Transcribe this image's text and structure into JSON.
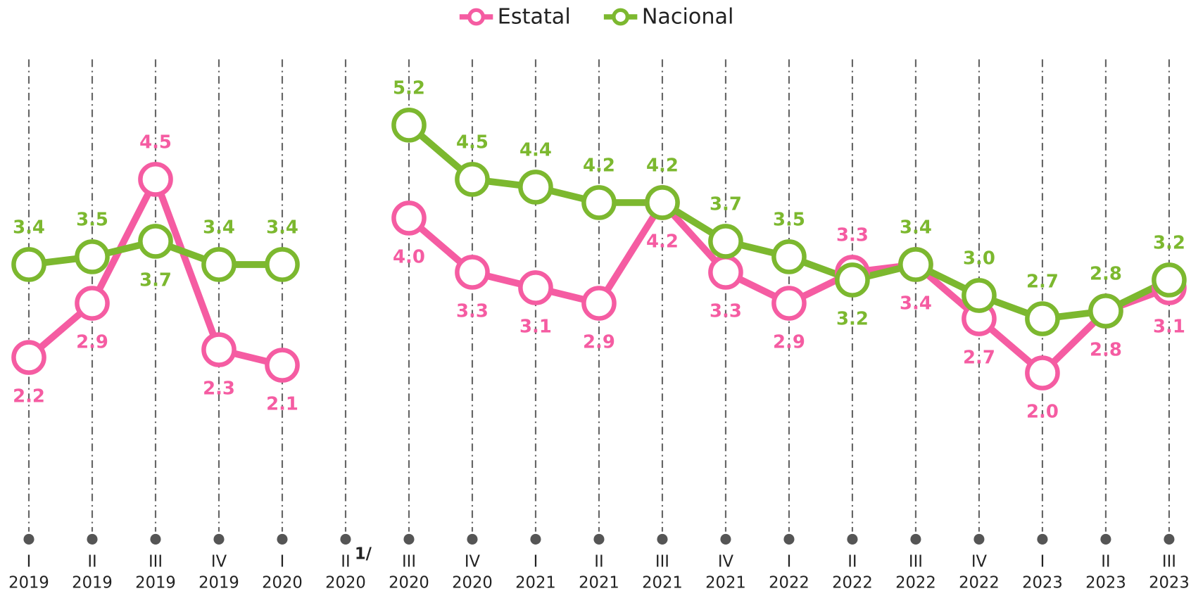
{
  "chart_data": {
    "type": "line",
    "categories": [
      [
        "I",
        "2019"
      ],
      [
        "II",
        "2019"
      ],
      [
        "III",
        "2019"
      ],
      [
        "IV",
        "2019"
      ],
      [
        "I",
        "2020"
      ],
      [
        "II",
        "2020"
      ],
      [
        "III",
        "2020"
      ],
      [
        "IV",
        "2020"
      ],
      [
        "I",
        "2021"
      ],
      [
        "II",
        "2021"
      ],
      [
        "III",
        "2021"
      ],
      [
        "IV",
        "2021"
      ],
      [
        "I",
        "2022"
      ],
      [
        "II",
        "2022"
      ],
      [
        "III",
        "2022"
      ],
      [
        "IV",
        "2022"
      ],
      [
        "I",
        "2023"
      ],
      [
        "II",
        "2023"
      ],
      [
        "III",
        "2023"
      ]
    ],
    "footnote_mark": "1/",
    "series": [
      {
        "name": "Estatal",
        "color": "#f55ca2",
        "values": [
          2.2,
          2.9,
          4.5,
          2.3,
          2.1,
          null,
          4.0,
          3.3,
          3.1,
          2.9,
          4.2,
          3.3,
          2.9,
          3.3,
          3.4,
          2.7,
          2.0,
          2.8,
          3.1
        ],
        "value_labels": [
          "2.2",
          "2.9",
          "4.5",
          "2.3",
          "2.1",
          null,
          "4.0",
          "3.3",
          "3.1",
          "2.9",
          "4.2",
          "3.3",
          "2.9",
          "3.3",
          "3.4",
          "2.7",
          "2.0",
          "2.8",
          "3.1"
        ]
      },
      {
        "name": "Nacional",
        "color": "#7cb82f",
        "values": [
          3.4,
          3.5,
          3.7,
          3.4,
          3.4,
          null,
          5.2,
          4.5,
          4.4,
          4.2,
          4.2,
          3.7,
          3.5,
          3.2,
          3.4,
          3.0,
          2.7,
          2.8,
          3.2
        ],
        "value_labels": [
          "3.4",
          "3.5",
          "3.7",
          "3.4",
          "3.4",
          null,
          "5.2",
          "4.5",
          "4.4",
          "4.2",
          "4.2",
          "3.7",
          "3.5",
          "3.2",
          "3.4",
          "3.0",
          "2.7",
          "2.8",
          "3.2"
        ]
      }
    ],
    "ylim": [
      0,
      6
    ],
    "legend": "top"
  }
}
